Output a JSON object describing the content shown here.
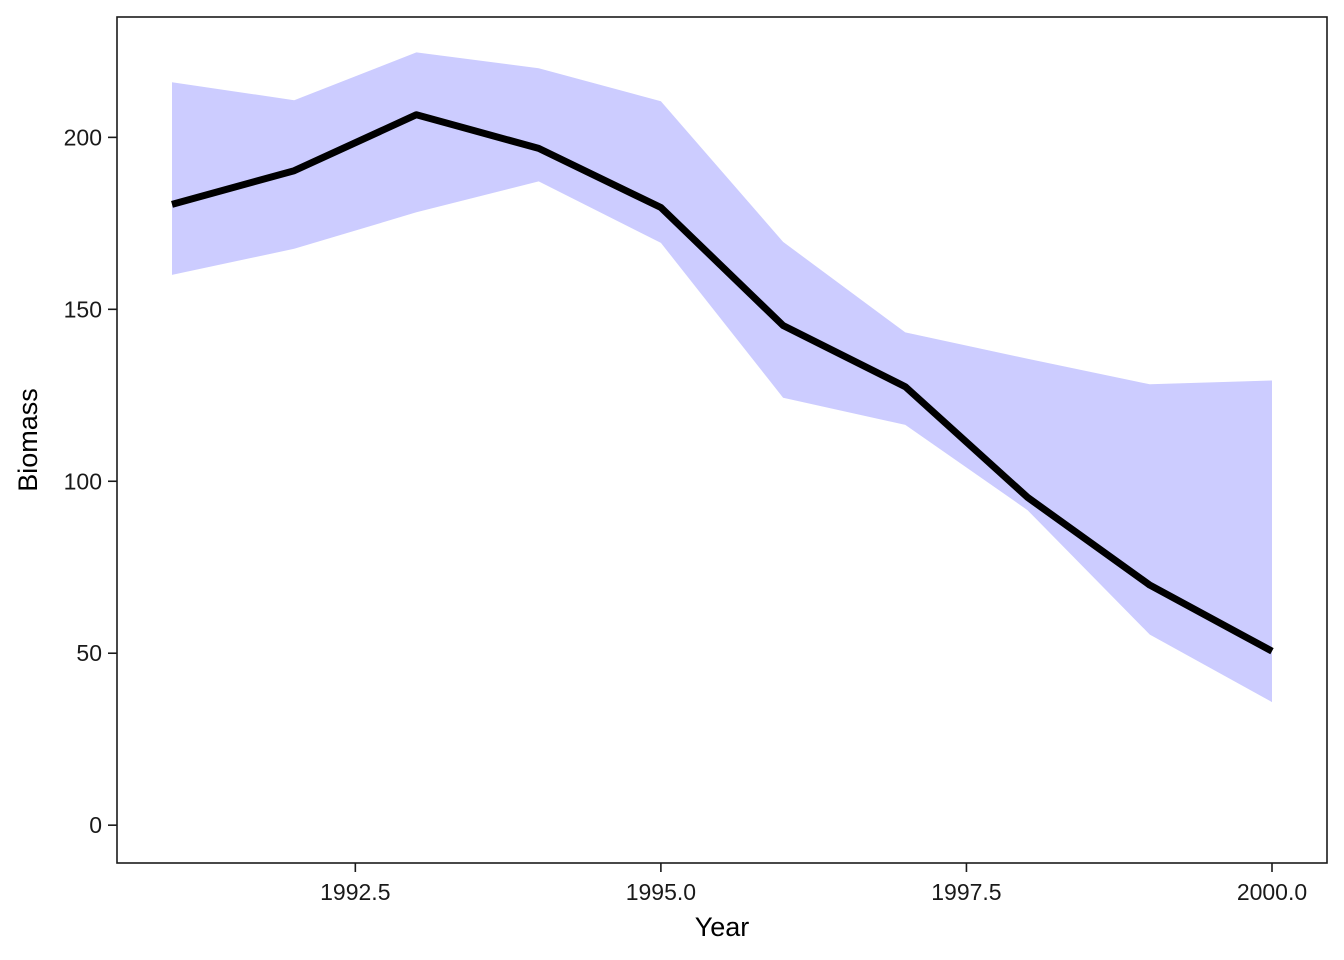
{
  "chart_data": {
    "type": "line",
    "title": "",
    "xlabel": "Year",
    "ylabel": "Biomass",
    "xlim": [
      1990.55,
      2000.45
    ],
    "ylim": [
      -11,
      235
    ],
    "x_ticks": [
      1992.5,
      1995.0,
      1997.5,
      2000.0
    ],
    "x_tick_labels": [
      "1992.5",
      "1995.0",
      "1997.5",
      "2000.0"
    ],
    "y_ticks": [
      0,
      50,
      100,
      150,
      200
    ],
    "y_tick_labels": [
      "0",
      "50",
      "100",
      "150",
      "200"
    ],
    "grid": false,
    "legend": "none",
    "series": [
      {
        "x": [
          1991,
          1992,
          1993,
          1994,
          1995,
          1996,
          1997,
          1998,
          1999,
          2000
        ],
        "values": [
          180.5,
          190.3,
          206.6,
          196.8,
          179.6,
          145.3,
          127.5,
          95.3,
          69.8,
          50.6
        ],
        "lower": [
          160.0,
          167.6,
          178.2,
          187.2,
          169.3,
          124.3,
          116.4,
          91.6,
          55.4,
          35.8
        ],
        "upper": [
          216.0,
          210.8,
          224.7,
          220.1,
          210.5,
          169.6,
          143.3,
          135.6,
          128.2,
          129.3
        ],
        "color": "#000000",
        "ribbon_color": "#ccccff"
      }
    ]
  }
}
